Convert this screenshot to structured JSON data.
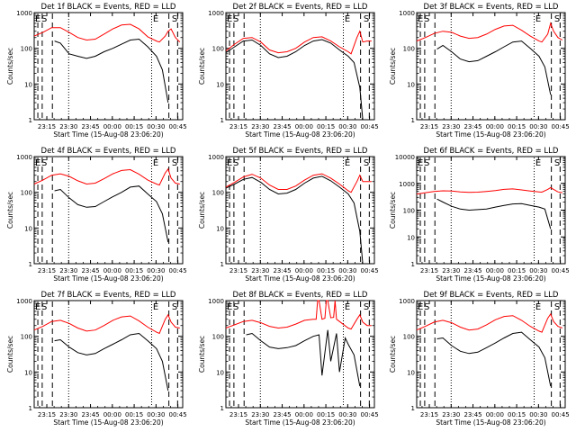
{
  "figure": {
    "x_ticks": [
      "23:15",
      "23:30",
      "23:45",
      "00:00",
      "00:15",
      "00:30",
      "00:45"
    ],
    "y_ticks_small": [
      "1",
      "10",
      "100",
      "1000"
    ],
    "y_ticks_large": [
      "1",
      "10",
      "100",
      "1000",
      "10000"
    ],
    "ylabel": "Counts/sec",
    "xlabel": "Start Time (15-Aug-08 23:06:20)",
    "colors": {
      "events": "#000000",
      "lld": "#ff0000"
    },
    "markers": {
      "E": "E",
      "S": "S"
    }
  },
  "chart_data": [
    {
      "type": "line",
      "title": "Det 1f BLACK = Events, RED = LLD",
      "ylim": [
        1,
        1000
      ],
      "x_range_min": [
        0,
        102
      ],
      "series": [
        {
          "name": "Events",
          "x": [
            14,
            18,
            24,
            30,
            36,
            42,
            48,
            54,
            60,
            66,
            72,
            78,
            84,
            88,
            92,
            94
          ],
          "values": [
            160,
            140,
            70,
            60,
            52,
            60,
            80,
            100,
            130,
            170,
            180,
            110,
            60,
            25,
            3,
            null
          ]
        },
        {
          "name": "LLD",
          "x": [
            0,
            6,
            12,
            18,
            24,
            30,
            36,
            42,
            48,
            54,
            60,
            66,
            72,
            78,
            84,
            86,
            90,
            92,
            94,
            97,
            100
          ],
          "values": [
            220,
            280,
            380,
            380,
            280,
            200,
            170,
            180,
            250,
            350,
            450,
            470,
            350,
            210,
            160,
            150,
            220,
            300,
            350,
            200,
            150
          ]
        }
      ]
    },
    {
      "type": "line",
      "title": "Det 2f BLACK = Events, RED = LLD",
      "ylim": [
        1,
        1000
      ],
      "x_range_min": [
        0,
        102
      ],
      "series": [
        {
          "name": "Events",
          "x": [
            0,
            6,
            12,
            18,
            24,
            30,
            36,
            42,
            48,
            54,
            60,
            66,
            72,
            78,
            84,
            88,
            92,
            94
          ],
          "values": [
            75,
            110,
            160,
            170,
            120,
            70,
            55,
            60,
            80,
            120,
            160,
            175,
            140,
            90,
            60,
            40,
            8,
            1
          ]
        },
        {
          "name": "LLD",
          "x": [
            0,
            6,
            12,
            18,
            24,
            30,
            36,
            42,
            48,
            54,
            60,
            66,
            72,
            78,
            84,
            86,
            90,
            92,
            94,
            97,
            100
          ],
          "values": [
            85,
            130,
            190,
            200,
            150,
            90,
            75,
            80,
            100,
            150,
            200,
            210,
            160,
            110,
            80,
            70,
            200,
            300,
            150,
            160,
            160
          ]
        }
      ]
    },
    {
      "type": "line",
      "title": "Det 3f BLACK = Events, RED = LLD",
      "ylim": [
        1,
        1000
      ],
      "x_range_min": [
        0,
        102
      ],
      "series": [
        {
          "name": "Events",
          "x": [
            14,
            18,
            24,
            30,
            36,
            42,
            48,
            54,
            60,
            66,
            72,
            78,
            84,
            88,
            92,
            94
          ],
          "values": [
            95,
            120,
            80,
            50,
            42,
            45,
            60,
            80,
            110,
            150,
            160,
            100,
            60,
            30,
            5,
            null
          ]
        },
        {
          "name": "LLD",
          "x": [
            0,
            6,
            12,
            18,
            24,
            30,
            36,
            42,
            48,
            54,
            60,
            66,
            72,
            78,
            84,
            86,
            90,
            92,
            94,
            97,
            100
          ],
          "values": [
            160,
            200,
            260,
            300,
            280,
            220,
            190,
            200,
            250,
            340,
            420,
            440,
            320,
            220,
            160,
            150,
            250,
            500,
            300,
            200,
            170
          ]
        }
      ]
    },
    {
      "type": "line",
      "title": "Det 4f BLACK = Events, RED = LLD",
      "ylim": [
        1,
        1000
      ],
      "x_range_min": [
        0,
        102
      ],
      "series": [
        {
          "name": "Events",
          "x": [
            14,
            18,
            24,
            30,
            36,
            42,
            48,
            54,
            60,
            66,
            72,
            78,
            84,
            88,
            92,
            94
          ],
          "values": [
            110,
            120,
            70,
            45,
            38,
            40,
            55,
            75,
            100,
            140,
            150,
            90,
            55,
            25,
            4,
            null
          ]
        },
        {
          "name": "LLD",
          "x": [
            0,
            6,
            12,
            18,
            24,
            30,
            36,
            42,
            48,
            54,
            60,
            66,
            72,
            78,
            84,
            86,
            90,
            92,
            94,
            97,
            100
          ],
          "values": [
            170,
            220,
            300,
            330,
            280,
            210,
            170,
            180,
            240,
            330,
            410,
            430,
            320,
            220,
            170,
            160,
            350,
            450,
            250,
            180,
            170
          ]
        }
      ]
    },
    {
      "type": "line",
      "title": "Det 5f BLACK = Events, RED = LLD",
      "ylim": [
        1,
        1000
      ],
      "x_range_min": [
        0,
        102
      ],
      "series": [
        {
          "name": "Events",
          "x": [
            0,
            6,
            12,
            18,
            24,
            30,
            36,
            42,
            48,
            54,
            60,
            66,
            72,
            78,
            84,
            88,
            92,
            94
          ],
          "values": [
            130,
            170,
            230,
            260,
            190,
            120,
            90,
            95,
            120,
            180,
            250,
            280,
            210,
            140,
            90,
            50,
            8,
            1
          ]
        },
        {
          "name": "LLD",
          "x": [
            0,
            6,
            12,
            18,
            24,
            30,
            36,
            42,
            48,
            54,
            60,
            66,
            72,
            78,
            84,
            86,
            90,
            92,
            94,
            97,
            100
          ],
          "values": [
            140,
            190,
            270,
            320,
            250,
            160,
            120,
            120,
            150,
            220,
            300,
            330,
            250,
            170,
            110,
            100,
            200,
            300,
            200,
            200,
            200
          ]
        }
      ]
    },
    {
      "type": "line",
      "title": "Det 6f BLACK = Events, RED = LLD",
      "ylim": [
        1,
        10000
      ],
      "x_range_min": [
        0,
        102
      ],
      "series": [
        {
          "name": "Events",
          "x": [
            14,
            18,
            24,
            30,
            36,
            42,
            48,
            54,
            60,
            66,
            72,
            78,
            84,
            88,
            92,
            94
          ],
          "values": [
            260,
            200,
            140,
            110,
            100,
            105,
            110,
            130,
            150,
            170,
            175,
            150,
            130,
            110,
            20,
            null
          ]
        },
        {
          "name": "LLD",
          "x": [
            0,
            6,
            12,
            18,
            24,
            30,
            36,
            42,
            48,
            54,
            60,
            66,
            72,
            78,
            84,
            86,
            90,
            92,
            94,
            97,
            100
          ],
          "values": [
            400,
            450,
            500,
            530,
            520,
            480,
            460,
            470,
            500,
            540,
            600,
            620,
            570,
            520,
            480,
            470,
            600,
            700,
            600,
            480,
            450
          ]
        }
      ]
    },
    {
      "type": "line",
      "title": "Det 7f BLACK = Events, RED = LLD",
      "ylim": [
        1,
        1000
      ],
      "x_range_min": [
        0,
        102
      ],
      "series": [
        {
          "name": "Events",
          "x": [
            14,
            18,
            24,
            30,
            36,
            42,
            48,
            54,
            60,
            66,
            72,
            78,
            84,
            88,
            92,
            94
          ],
          "values": [
            75,
            80,
            50,
            35,
            30,
            33,
            45,
            60,
            80,
            110,
            120,
            75,
            45,
            20,
            3,
            null
          ]
        },
        {
          "name": "LLD",
          "x": [
            0,
            6,
            12,
            18,
            24,
            30,
            36,
            42,
            48,
            54,
            60,
            66,
            72,
            78,
            84,
            86,
            90,
            92,
            94,
            97,
            100
          ],
          "values": [
            150,
            190,
            260,
            280,
            230,
            170,
            140,
            150,
            200,
            280,
            350,
            370,
            270,
            180,
            130,
            120,
            300,
            400,
            250,
            180,
            170
          ]
        }
      ]
    },
    {
      "type": "line",
      "title": "Det 8f BLACK = Events, RED = LLD",
      "ylim": [
        1,
        1000
      ],
      "x_range_min": [
        0,
        102
      ],
      "series": [
        {
          "name": "Events",
          "x": [
            14,
            18,
            24,
            30,
            36,
            42,
            48,
            54,
            60,
            64,
            66,
            70,
            72,
            76,
            78,
            82,
            84,
            88,
            92,
            94
          ],
          "values": [
            110,
            120,
            75,
            50,
            45,
            48,
            55,
            75,
            100,
            110,
            8,
            150,
            20,
            120,
            10,
            90,
            60,
            30,
            4,
            null
          ]
        },
        {
          "name": "LLD",
          "x": [
            0,
            6,
            12,
            18,
            24,
            30,
            36,
            42,
            48,
            54,
            60,
            62,
            63,
            64,
            66,
            68,
            69,
            70,
            72,
            74,
            75,
            76,
            78,
            84,
            86,
            90,
            92,
            94,
            97,
            100
          ],
          "values": [
            170,
            210,
            260,
            280,
            240,
            190,
            170,
            180,
            220,
            280,
            300,
            300,
            1000,
            1000,
            300,
            320,
            1000,
            1000,
            330,
            340,
            1000,
            300,
            260,
            170,
            160,
            300,
            400,
            250,
            200,
            200
          ]
        }
      ]
    },
    {
      "type": "line",
      "title": "Det 9f BLACK = Events, RED = LLD",
      "ylim": [
        1,
        1000
      ],
      "x_range_min": [
        0,
        102
      ],
      "series": [
        {
          "name": "Events",
          "x": [
            14,
            18,
            24,
            30,
            36,
            42,
            48,
            54,
            60,
            66,
            72,
            78,
            84,
            88,
            92,
            94
          ],
          "values": [
            85,
            90,
            55,
            38,
            33,
            36,
            48,
            65,
            90,
            120,
            130,
            80,
            50,
            25,
            4,
            null
          ]
        },
        {
          "name": "LLD",
          "x": [
            0,
            6,
            12,
            18,
            24,
            30,
            36,
            42,
            48,
            54,
            60,
            66,
            72,
            78,
            84,
            86,
            90,
            92,
            94,
            97,
            100
          ],
          "values": [
            150,
            190,
            250,
            280,
            240,
            180,
            150,
            160,
            210,
            290,
            360,
            380,
            280,
            190,
            140,
            130,
            320,
            420,
            260,
            190,
            170
          ]
        }
      ]
    }
  ]
}
